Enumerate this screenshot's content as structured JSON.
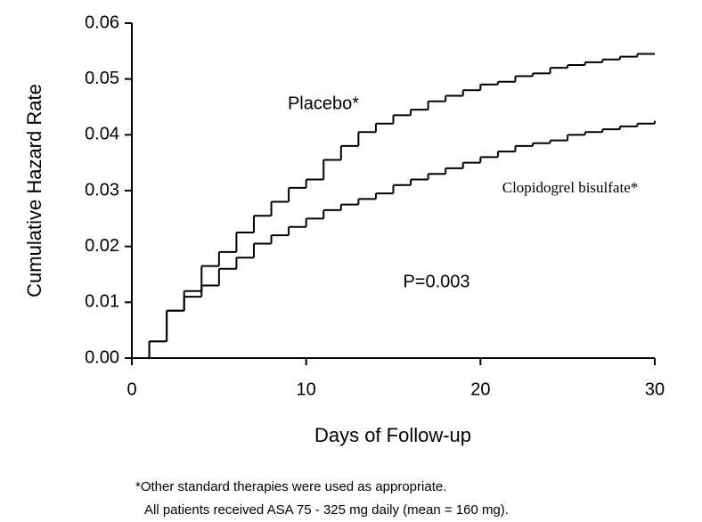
{
  "chart_data": {
    "type": "step",
    "x_label": "Days of Follow-up",
    "y_label": "Cumulative Hazard Rate",
    "annotations": [
      "P=0.003"
    ],
    "footnote": [
      "*Other standard therapies were used as appropriate.",
      "All patients received ASA 75 - 325 mg daily (mean = 160 mg)."
    ],
    "x": [
      0,
      1,
      2,
      3,
      4,
      5,
      6,
      7,
      8,
      9,
      10,
      11,
      12,
      13,
      14,
      15,
      16,
      17,
      18,
      19,
      20,
      21,
      22,
      23,
      24,
      25,
      26,
      27,
      28,
      29,
      30
    ],
    "series": [
      {
        "name": "Placebo*",
        "color": "#000000",
        "values": [
          0,
          0.003,
          0.0085,
          0.012,
          0.0165,
          0.019,
          0.0225,
          0.0255,
          0.028,
          0.0305,
          0.032,
          0.0355,
          0.038,
          0.0405,
          0.042,
          0.0435,
          0.0445,
          0.046,
          0.047,
          0.048,
          0.049,
          0.0495,
          0.0505,
          0.051,
          0.052,
          0.0525,
          0.053,
          0.0535,
          0.054,
          0.0545,
          0.0545
        ]
      },
      {
        "name": "Clopidogrel bisulfate*",
        "color": "#000000",
        "values": [
          0,
          0.003,
          0.0085,
          0.011,
          0.013,
          0.016,
          0.018,
          0.0205,
          0.022,
          0.0235,
          0.025,
          0.0265,
          0.0275,
          0.0285,
          0.0295,
          0.031,
          0.032,
          0.033,
          0.034,
          0.035,
          0.036,
          0.037,
          0.038,
          0.0385,
          0.039,
          0.04,
          0.0405,
          0.041,
          0.0415,
          0.042,
          0.0425
        ]
      }
    ],
    "xlim": [
      0,
      30
    ],
    "xticks": [
      0,
      10,
      20,
      30
    ],
    "ylim": [
      0,
      0.06
    ],
    "yticks": [
      {
        "value": 0,
        "label": "0.00"
      },
      0.01,
      0.02,
      0.03,
      0.04,
      0.05,
      0.06
    ]
  }
}
